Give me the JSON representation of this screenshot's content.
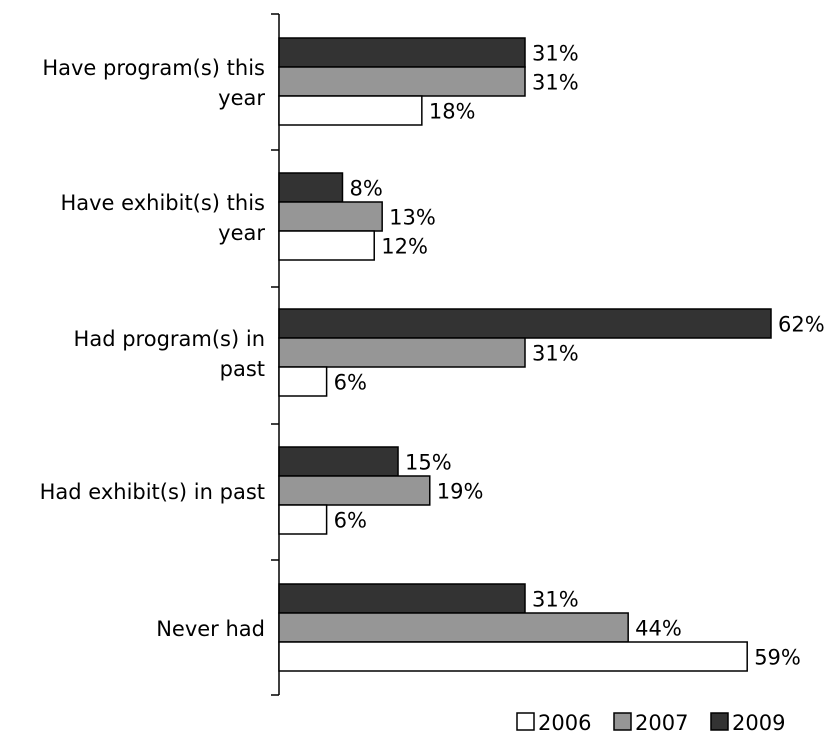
{
  "chart_data": {
    "type": "bar",
    "orientation": "horizontal",
    "categories": [
      "Have program(s) this year",
      "Have exhibit(s) this year",
      "Had program(s) in past",
      "Had exhibit(s) in past",
      "Never had"
    ],
    "category_label_lines": [
      [
        "Have program(s) this",
        "year"
      ],
      [
        "Have exhibit(s) this",
        "year"
      ],
      [
        "Had program(s) in",
        "past"
      ],
      [
        "Had exhibit(s) in past"
      ],
      [
        "Never had"
      ]
    ],
    "series": [
      {
        "name": "2009",
        "color": "#333333",
        "values": [
          31,
          8,
          62,
          15,
          31
        ],
        "labels": [
          "31%",
          "8%",
          "62%",
          "15%",
          "31%"
        ]
      },
      {
        "name": "2007",
        "color": "#969696",
        "values": [
          31,
          13,
          31,
          19,
          44
        ],
        "labels": [
          "31%",
          "13%",
          "31%",
          "19%",
          "44%"
        ]
      },
      {
        "name": "2006",
        "color": "#ffffff",
        "values": [
          18,
          12,
          6,
          6,
          59
        ],
        "labels": [
          "18%",
          "12%",
          "6%",
          "6%",
          "59%"
        ]
      }
    ],
    "legend": [
      "2006",
      "2007",
      "2009"
    ],
    "legend_position": "bottom-right",
    "xlim": [
      0,
      62
    ],
    "grid": false,
    "title": "",
    "xlabel": "",
    "ylabel": ""
  }
}
